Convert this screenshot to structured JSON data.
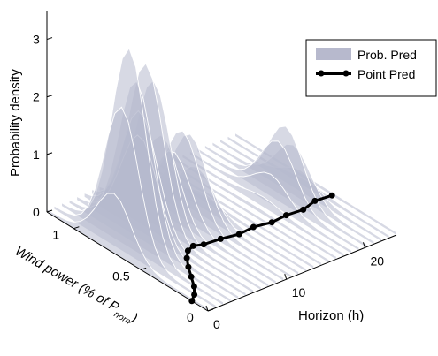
{
  "chart_data": {
    "type": "surface3d",
    "title": "",
    "ylabel": "Probability density",
    "xlabel": "Wind power (% of P",
    "xlabel_sub": "nom",
    "xlabel_tail": ")",
    "zlabel": "Horizon (h)",
    "y_ticks": [
      "0",
      "1",
      "2",
      "3"
    ],
    "x_ticks": [
      "0",
      "0.5",
      "1"
    ],
    "z_ticks": [
      "0",
      "10",
      "20"
    ],
    "ylim": [
      0,
      3.5
    ],
    "xlim": [
      0,
      1.2
    ],
    "horizon_lim": [
      0,
      24
    ],
    "grid": false,
    "legend": {
      "position": "top-right",
      "entries": [
        {
          "label": "Prob. Pred",
          "color": "#b7b9cd",
          "kind": "patch"
        },
        {
          "label": "Point Pred",
          "color": "#000000",
          "kind": "line-marker"
        }
      ]
    },
    "point_prediction": {
      "horizon": [
        0,
        1,
        2,
        3,
        4,
        5,
        6,
        7,
        8,
        10,
        12,
        14,
        16,
        18,
        20,
        22,
        24
      ],
      "wind_power": [
        0.12,
        0.16,
        0.22,
        0.3,
        0.38,
        0.45,
        0.5,
        0.52,
        0.5,
        0.49,
        0.47,
        0.48,
        0.46,
        0.47,
        0.46,
        0.49,
        0.48
      ]
    },
    "prob_peaks": [
      {
        "horizon": 2,
        "wind_power": 0.7,
        "density": 3.4
      },
      {
        "horizon": 6,
        "wind_power": 0.8,
        "density": 2.8
      },
      {
        "horizon": 10,
        "wind_power": 0.75,
        "density": 1.5
      },
      {
        "horizon": 20,
        "wind_power": 0.6,
        "density": 1.2
      }
    ]
  },
  "legend_prob_label": "Prob. Pred",
  "legend_point_label": "Point Pred"
}
